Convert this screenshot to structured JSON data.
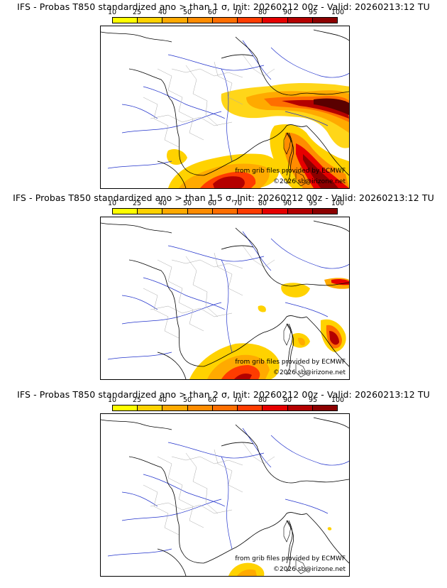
{
  "colorbar": {
    "labels": [
      "10",
      "25",
      "40",
      "50",
      "60",
      "70",
      "80",
      "90",
      "95",
      "100"
    ],
    "colors": [
      "#ffff00",
      "#ffd200",
      "#ffaa00",
      "#ff8c00",
      "#ff6e00",
      "#ff3c00",
      "#e60000",
      "#b40000",
      "#8c0000",
      "#5a0000"
    ]
  },
  "credit_source": "from grib files provided by ECMWF",
  "credit_copyright": "©2026 sb@irizone.net",
  "panels": [
    {
      "title": "IFS - Probas T850  standardized ano > than 1 σ, Init: 20260212 00z - Valid: 20260213:12 TU"
    },
    {
      "title": "IFS - Probas T850  standardized ano > than 1.5 σ, Init: 20260212 00z - Valid: 20260213:12 TU"
    },
    {
      "title": "IFS - Probas T850  standardized ano > than 2 σ, Init: 20260212 00z - Valid: 20260213:12 TU"
    }
  ]
}
